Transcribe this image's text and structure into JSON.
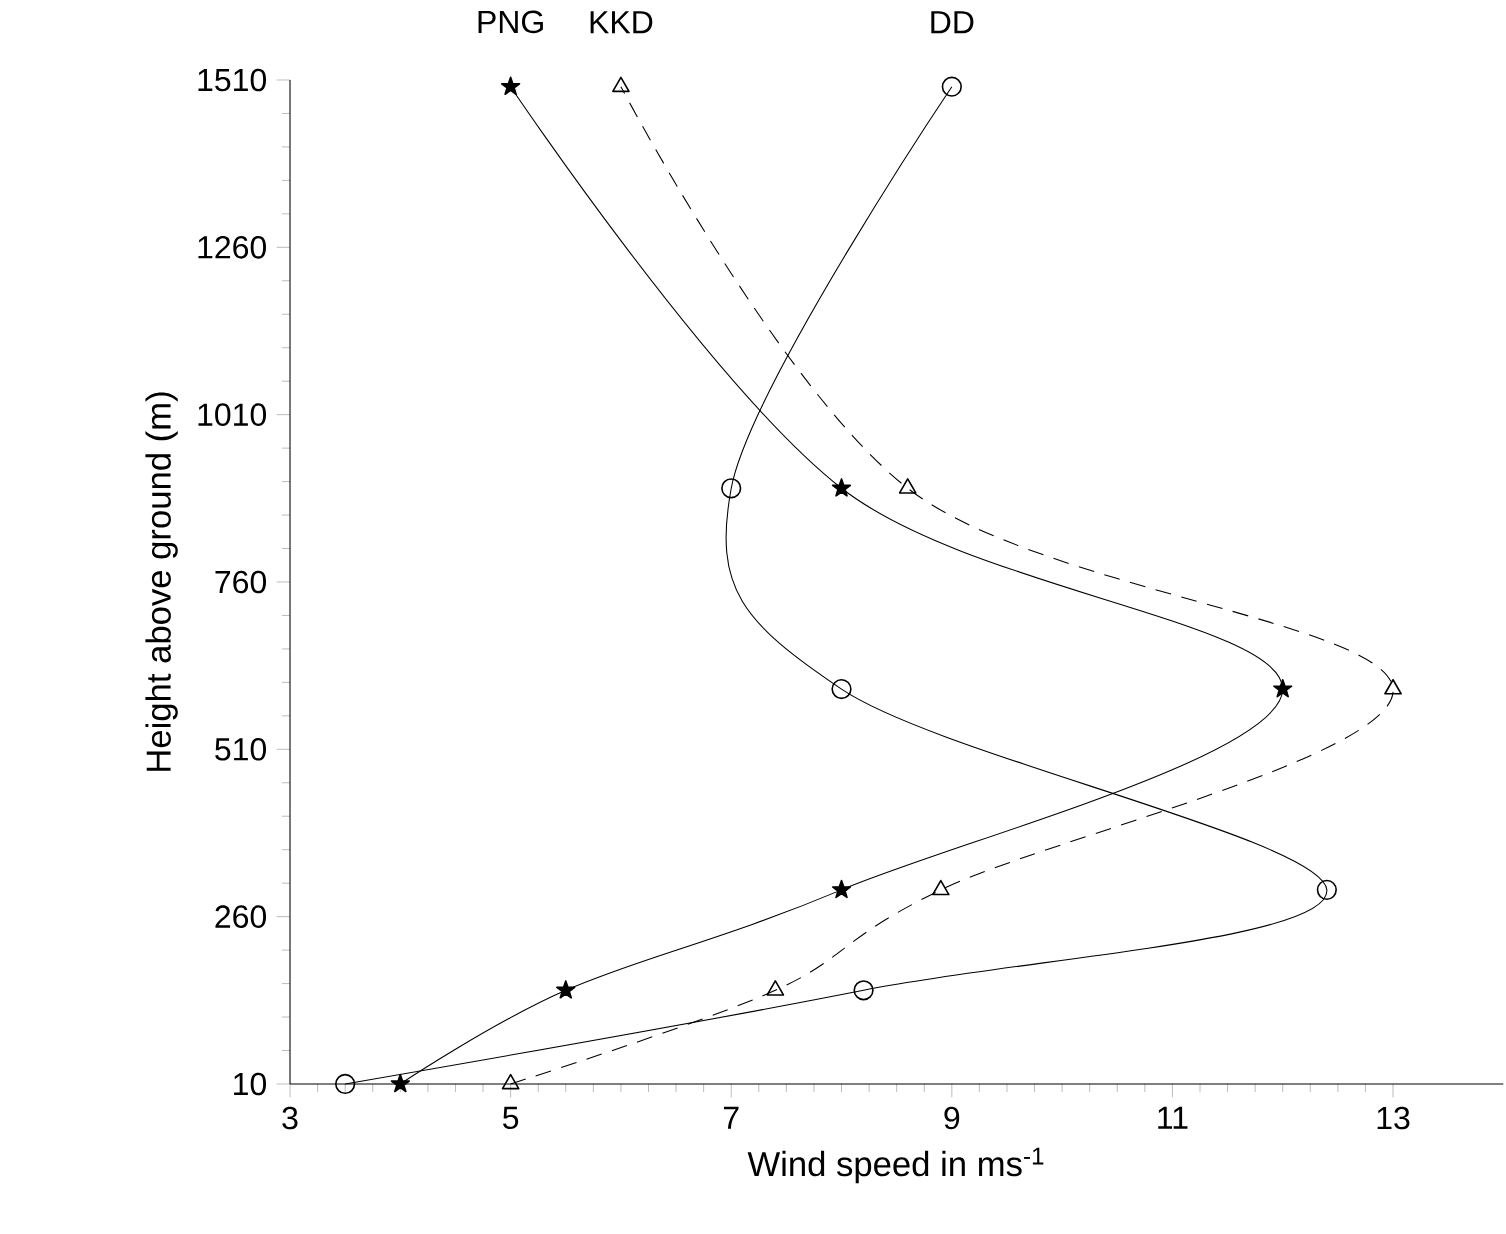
{
  "chart_data": {
    "type": "line",
    "xlabel": "Wind speed in ms$^{-1}$",
    "ylabel": "Height above ground (m)",
    "xlim": [
      3,
      14
    ],
    "ylim": [
      10,
      1510
    ],
    "xticks": [
      3,
      5,
      7,
      9,
      11,
      13
    ],
    "yticks": [
      10,
      260,
      510,
      760,
      1010,
      1260,
      1510
    ],
    "grid": false,
    "legend": false,
    "series": [
      {
        "name": "PNG",
        "color": "#000000",
        "marker": "star",
        "line_style": "solid",
        "x": [
          4,
          5.5,
          8,
          12,
          8,
          5
        ],
        "values": [
          10,
          150,
          300,
          600,
          900,
          1500
        ]
      },
      {
        "name": "KKD",
        "color": "#000000",
        "marker": "triangle",
        "line_style": "dashed",
        "x": [
          5,
          7.4,
          8.9,
          13,
          8.6,
          6
        ],
        "values": [
          10,
          150,
          300,
          600,
          900,
          1500
        ]
      },
      {
        "name": "DD",
        "color": "#000000",
        "marker": "circle",
        "line_style": "solid",
        "x": [
          3.5,
          8.2,
          12.4,
          8,
          7,
          9
        ],
        "values": [
          10,
          150,
          300,
          600,
          900,
          1500
        ]
      }
    ]
  }
}
